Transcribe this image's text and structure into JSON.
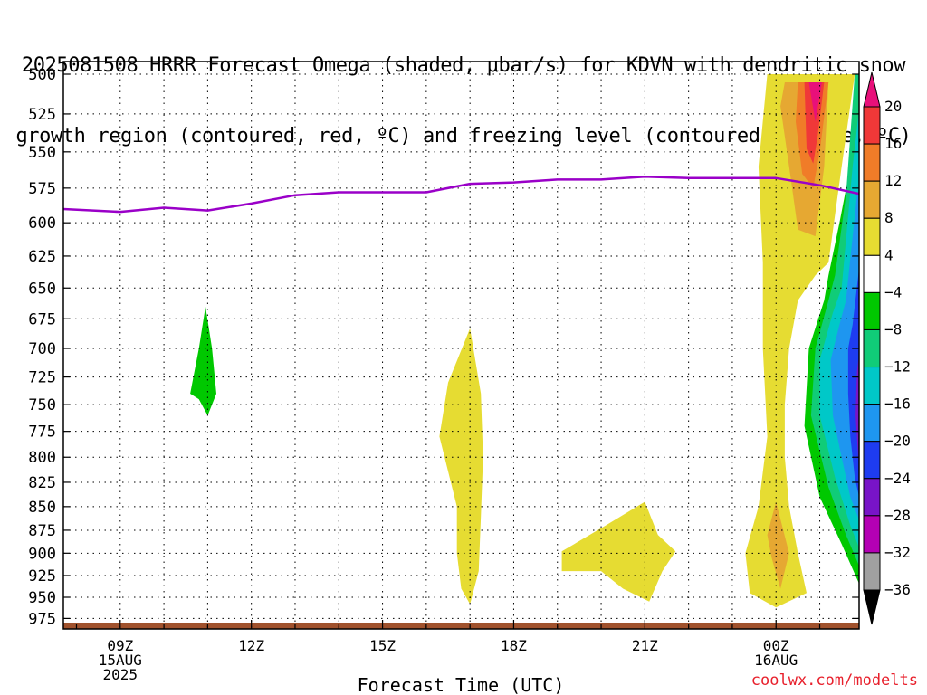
{
  "chart_data": {
    "type": "heatmap",
    "title_line1": "2025081508 HRRR Forecast Omega (shaded, μbar/s) for KDVN with dendritic snow",
    "title_line2": "growth region (contoured, red, ºC) and freezing level (contoured, purple, ºC)",
    "xlabel": "Forecast Time (UTC)",
    "y_axis": {
      "ticks": [
        500,
        525,
        550,
        575,
        600,
        625,
        650,
        675,
        700,
        725,
        750,
        775,
        800,
        825,
        850,
        875,
        900,
        925,
        950,
        975
      ],
      "range": [
        500,
        985
      ],
      "scale": "log-pressure"
    },
    "x_axis": {
      "range_hours": [
        7.7,
        25.9
      ],
      "ticks": [
        {
          "hour": 9,
          "lines": [
            "09Z",
            "15AUG",
            "2025"
          ]
        },
        {
          "hour": 12,
          "lines": [
            "12Z"
          ]
        },
        {
          "hour": 15,
          "lines": [
            "15Z"
          ]
        },
        {
          "hour": 18,
          "lines": [
            "18Z"
          ]
        },
        {
          "hour": 21,
          "lines": [
            "21Z"
          ]
        },
        {
          "hour": 24,
          "lines": [
            "00Z",
            "16AUG"
          ]
        }
      ]
    },
    "grid": true,
    "colorbar": {
      "labels": [
        "20",
        "16",
        "12",
        "8",
        "4",
        "−4",
        "−8",
        "−12",
        "−16",
        "−20",
        "−24",
        "−28",
        "−32",
        "−36"
      ],
      "bins": [
        {
          "color": "#e8107a"
        },
        {
          "color": "#f03838"
        },
        {
          "color": "#f07c28"
        },
        {
          "color": "#e6a832"
        },
        {
          "color": "#e6dc32"
        },
        {
          "color": "#ffffff"
        },
        {
          "color": "#00c800"
        },
        {
          "color": "#10cc78"
        },
        {
          "color": "#00c8c8"
        },
        {
          "color": "#1e96f0"
        },
        {
          "color": "#1e3cf0"
        },
        {
          "color": "#7814c8"
        },
        {
          "color": "#b400b4"
        },
        {
          "color": "#a0a0a0"
        },
        {
          "color": "#000000"
        }
      ]
    },
    "freezing_level": {
      "color": "#9a00c8",
      "points": [
        [
          7.7,
          590
        ],
        [
          9,
          592
        ],
        [
          10,
          589
        ],
        [
          11,
          591
        ],
        [
          12,
          586
        ],
        [
          13,
          580
        ],
        [
          14,
          578
        ],
        [
          15,
          578
        ],
        [
          16,
          578
        ],
        [
          17,
          572
        ],
        [
          18,
          571
        ],
        [
          19,
          569
        ],
        [
          20,
          569
        ],
        [
          21,
          567
        ],
        [
          22,
          568
        ],
        [
          23,
          568
        ],
        [
          24,
          568
        ],
        [
          25,
          573
        ],
        [
          25.9,
          579
        ]
      ]
    },
    "ground": {
      "color": "#a0522d",
      "top_hpa": 980
    }
  },
  "watermark": "coolwx.com/modelts"
}
